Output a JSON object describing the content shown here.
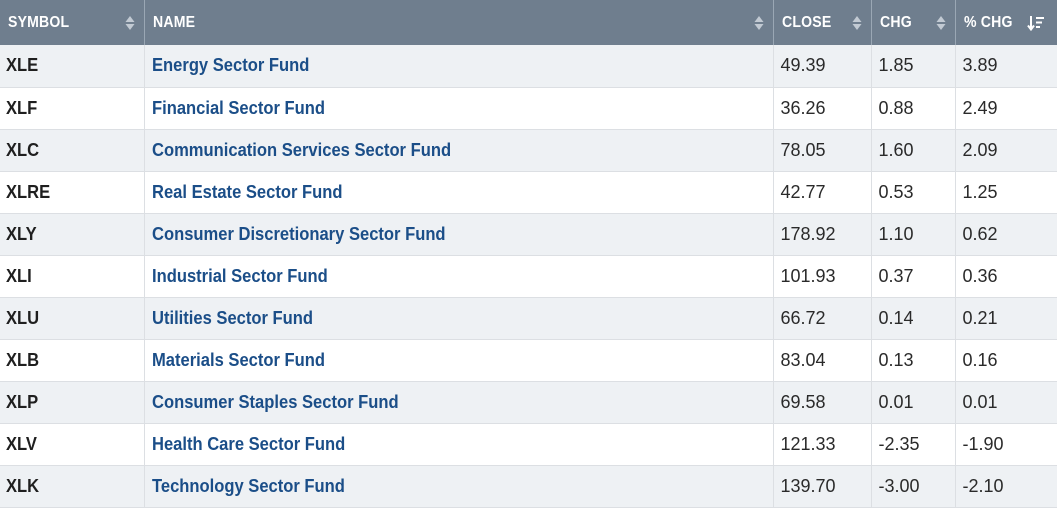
{
  "columns": {
    "symbol": "SYMBOL",
    "name": "NAME",
    "close": "CLOSE",
    "chg": "CHG",
    "pct_chg": "% CHG"
  },
  "sort_icon": "sort-updown-icon",
  "active_sort_icon": "sort-descending-icon",
  "colors": {
    "header_bg": "#6f7e8e",
    "link": "#1b4e88",
    "row_stripe": "#eef1f4"
  },
  "rows": [
    {
      "symbol": "XLE",
      "name": "Energy Sector Fund",
      "close": "49.39",
      "chg": "1.85",
      "pct_chg": "3.89"
    },
    {
      "symbol": "XLF",
      "name": "Financial Sector Fund",
      "close": "36.26",
      "chg": "0.88",
      "pct_chg": "2.49"
    },
    {
      "symbol": "XLC",
      "name": "Communication Services Sector Fund",
      "close": "78.05",
      "chg": "1.60",
      "pct_chg": "2.09"
    },
    {
      "symbol": "XLRE",
      "name": "Real Estate Sector Fund",
      "close": "42.77",
      "chg": "0.53",
      "pct_chg": "1.25"
    },
    {
      "symbol": "XLY",
      "name": "Consumer Discretionary Sector Fund",
      "close": "178.92",
      "chg": "1.10",
      "pct_chg": "0.62"
    },
    {
      "symbol": "XLI",
      "name": "Industrial Sector Fund",
      "close": "101.93",
      "chg": "0.37",
      "pct_chg": "0.36"
    },
    {
      "symbol": "XLU",
      "name": "Utilities Sector Fund",
      "close": "66.72",
      "chg": "0.14",
      "pct_chg": "0.21"
    },
    {
      "symbol": "XLB",
      "name": "Materials Sector Fund",
      "close": "83.04",
      "chg": "0.13",
      "pct_chg": "0.16"
    },
    {
      "symbol": "XLP",
      "name": "Consumer Staples Sector Fund",
      "close": "69.58",
      "chg": "0.01",
      "pct_chg": "0.01"
    },
    {
      "symbol": "XLV",
      "name": "Health Care Sector Fund",
      "close": "121.33",
      "chg": "-2.35",
      "pct_chg": "-1.90"
    },
    {
      "symbol": "XLK",
      "name": "Technology Sector Fund",
      "close": "139.70",
      "chg": "-3.00",
      "pct_chg": "-2.10"
    }
  ]
}
